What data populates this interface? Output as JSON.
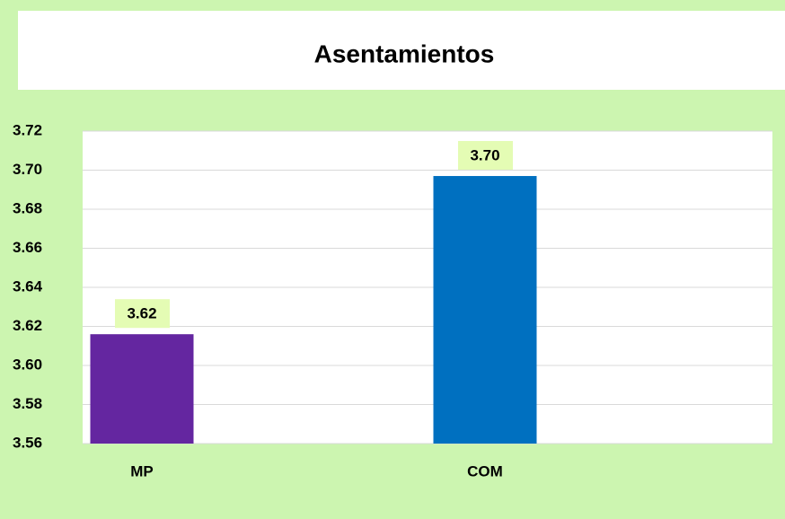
{
  "chart_data": {
    "type": "bar",
    "title": "Asentamientos",
    "categories": [
      "MP",
      "COM"
    ],
    "values": [
      3.616,
      3.697
    ],
    "value_labels": [
      "3.62",
      "3.70"
    ],
    "colors": [
      "#6426a0",
      "#0070c0"
    ],
    "ylim": [
      3.56,
      3.72
    ],
    "yticks": [
      3.56,
      3.58,
      {
        "value": 3.6,
        "label": "3.60"
      },
      3.62,
      3.64,
      3.66,
      3.68,
      {
        "value": 3.7,
        "label": "3.70"
      },
      3.72
    ],
    "grid": true
  }
}
